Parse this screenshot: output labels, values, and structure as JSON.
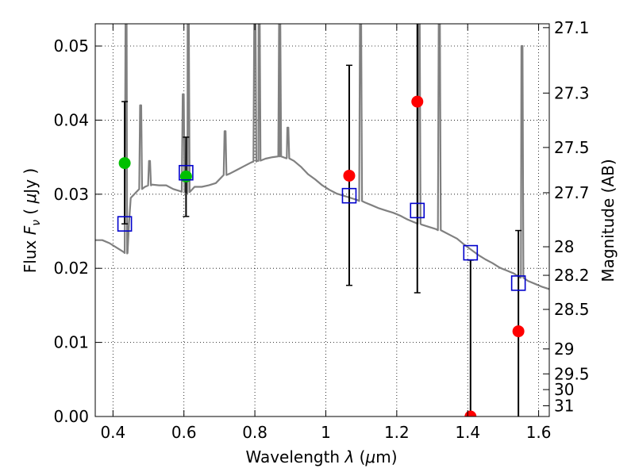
{
  "chart_data": {
    "type": "scatter",
    "xlabel": "Wavelength  λ (μm)",
    "ylabel": "Flux  F_ν  ( μJy )",
    "ylabel_parts": {
      "prefix": "Flux  ",
      "symbol": "F",
      "subscript": "ν",
      "unit_open": "  ( ",
      "unit_mu": "μ",
      "unit_rest": "Jy )"
    },
    "xlabel_parts": {
      "prefix": "Wavelength  ",
      "symbol": "λ",
      "unit_open": " (",
      "unit_mu": "μ",
      "unit_rest": "m)"
    },
    "y2label": "Magnitude (AB)",
    "xlim": [
      0.35,
      1.63
    ],
    "ylim": [
      0.0,
      0.053
    ],
    "grid": true,
    "grid_style": "dotted",
    "x_ticks": [
      0.4,
      0.6,
      0.8,
      1.0,
      1.2,
      1.4,
      1.6
    ],
    "x_tick_labels": [
      "0.4",
      "0.6",
      "0.8",
      "1",
      "1.2",
      "1.4",
      "1.6"
    ],
    "y_ticks": [
      0.0,
      0.01,
      0.02,
      0.03,
      0.04,
      0.05
    ],
    "y_tick_labels": [
      "0.00",
      "0.01",
      "0.02",
      "0.03",
      "0.04",
      "0.05"
    ],
    "mag_ticks": [
      {
        "mag": 27.1,
        "label": "27.1"
      },
      {
        "mag": 27.3,
        "label": "27.3"
      },
      {
        "mag": 27.5,
        "label": "27.5"
      },
      {
        "mag": 27.7,
        "label": "27.7"
      },
      {
        "mag": 28.0,
        "label": "28"
      },
      {
        "mag": 28.2,
        "label": "28.2"
      },
      {
        "mag": 28.5,
        "label": "28.5"
      },
      {
        "mag": 29.0,
        "label": "29"
      },
      {
        "mag": 29.5,
        "label": "29.5"
      },
      {
        "mag": 30.0,
        "label": "30"
      },
      {
        "mag": 31.0,
        "label": "31"
      }
    ],
    "model_spectrum": {
      "color": "#808080",
      "continuum": [
        [
          0.35,
          0.0238
        ],
        [
          0.37,
          0.0238
        ],
        [
          0.39,
          0.0234
        ],
        [
          0.41,
          0.0228
        ],
        [
          0.43,
          0.0222
        ],
        [
          0.44,
          0.022
        ],
        [
          0.445,
          0.026
        ],
        [
          0.45,
          0.0295
        ],
        [
          0.47,
          0.0305
        ],
        [
          0.49,
          0.031
        ],
        [
          0.51,
          0.0313
        ],
        [
          0.53,
          0.0312
        ],
        [
          0.55,
          0.0312
        ],
        [
          0.57,
          0.0307
        ],
        [
          0.59,
          0.0304
        ],
        [
          0.61,
          0.0302
        ],
        [
          0.63,
          0.031
        ],
        [
          0.65,
          0.031
        ],
        [
          0.67,
          0.0312
        ],
        [
          0.69,
          0.0315
        ],
        [
          0.71,
          0.0325
        ],
        [
          0.73,
          0.0328
        ],
        [
          0.75,
          0.0333
        ],
        [
          0.77,
          0.0338
        ],
        [
          0.79,
          0.0343
        ],
        [
          0.81,
          0.0345
        ],
        [
          0.83,
          0.0348
        ],
        [
          0.85,
          0.035
        ],
        [
          0.87,
          0.0351
        ],
        [
          0.89,
          0.0349
        ],
        [
          0.91,
          0.0345
        ],
        [
          0.93,
          0.0337
        ],
        [
          0.95,
          0.0327
        ],
        [
          0.97,
          0.032
        ],
        [
          0.99,
          0.0312
        ],
        [
          1.01,
          0.0306
        ],
        [
          1.03,
          0.0301
        ],
        [
          1.05,
          0.0298
        ],
        [
          1.07,
          0.0295
        ],
        [
          1.09,
          0.0292
        ],
        [
          1.11,
          0.0289
        ],
        [
          1.13,
          0.0285
        ],
        [
          1.15,
          0.0281
        ],
        [
          1.17,
          0.0278
        ],
        [
          1.19,
          0.0275
        ],
        [
          1.21,
          0.0271
        ],
        [
          1.23,
          0.0266
        ],
        [
          1.25,
          0.0262
        ],
        [
          1.27,
          0.0259
        ],
        [
          1.29,
          0.0256
        ],
        [
          1.31,
          0.0253
        ],
        [
          1.33,
          0.025
        ],
        [
          1.35,
          0.0245
        ],
        [
          1.37,
          0.024
        ],
        [
          1.39,
          0.0232
        ],
        [
          1.41,
          0.0225
        ],
        [
          1.43,
          0.0218
        ],
        [
          1.45,
          0.0212
        ],
        [
          1.47,
          0.0207
        ],
        [
          1.49,
          0.0201
        ],
        [
          1.51,
          0.0197
        ],
        [
          1.53,
          0.0193
        ],
        [
          1.55,
          0.0188
        ],
        [
          1.57,
          0.0183
        ],
        [
          1.59,
          0.0179
        ],
        [
          1.61,
          0.0175
        ],
        [
          1.63,
          0.0172
        ]
      ],
      "emission_lines": [
        {
          "x": 0.437,
          "peak": 0.0555
        },
        {
          "x": 0.478,
          "peak": 0.042
        },
        {
          "x": 0.503,
          "peak": 0.0345
        },
        {
          "x": 0.598,
          "peak": 0.0435
        },
        {
          "x": 0.612,
          "peak": 0.0555
        },
        {
          "x": 0.716,
          "peak": 0.0385
        },
        {
          "x": 0.8,
          "peak": 0.0555
        },
        {
          "x": 0.812,
          "peak": 0.0555
        },
        {
          "x": 0.87,
          "peak": 0.0555
        },
        {
          "x": 0.893,
          "peak": 0.039
        },
        {
          "x": 1.098,
          "peak": 0.0555
        },
        {
          "x": 1.263,
          "peak": 0.0555
        },
        {
          "x": 1.32,
          "peak": 0.0555
        },
        {
          "x": 1.553,
          "peak": 0.05
        }
      ]
    },
    "series": [
      {
        "marker": "circle-filled",
        "color": "#00c000",
        "points": [
          {
            "x": 0.433,
            "y": 0.0342
          },
          {
            "x": 0.606,
            "y": 0.0324
          }
        ]
      },
      {
        "marker": "circle-filled",
        "color": "#ff0000",
        "points": [
          {
            "x": 1.066,
            "y": 0.0325
          },
          {
            "x": 1.258,
            "y": 0.0425
          },
          {
            "x": 1.408,
            "y": 0.0
          },
          {
            "x": 1.543,
            "y": 0.0115
          }
        ]
      },
      {
        "marker": "square-open",
        "color": "#0000cc",
        "points": [
          {
            "x": 0.433,
            "y": 0.026
          },
          {
            "x": 0.606,
            "y": 0.0329
          },
          {
            "x": 1.066,
            "y": 0.0298
          },
          {
            "x": 1.258,
            "y": 0.0278
          },
          {
            "x": 1.408,
            "y": 0.0221
          },
          {
            "x": 1.543,
            "y": 0.018
          }
        ]
      }
    ],
    "error_bars": [
      {
        "x": 0.433,
        "y_low": 0.026,
        "y_high": 0.0425
      },
      {
        "x": 0.606,
        "y_low": 0.027,
        "y_high": 0.0377
      },
      {
        "x": 1.066,
        "y_low": 0.0177,
        "y_high": 0.0474
      },
      {
        "x": 1.258,
        "y_low": 0.0167,
        "y_high": 0.055
      },
      {
        "x": 1.408,
        "y_low": 0.0,
        "y_high": 0.0211
      },
      {
        "x": 1.543,
        "y_low": 0.0,
        "y_high": 0.0251
      }
    ]
  }
}
